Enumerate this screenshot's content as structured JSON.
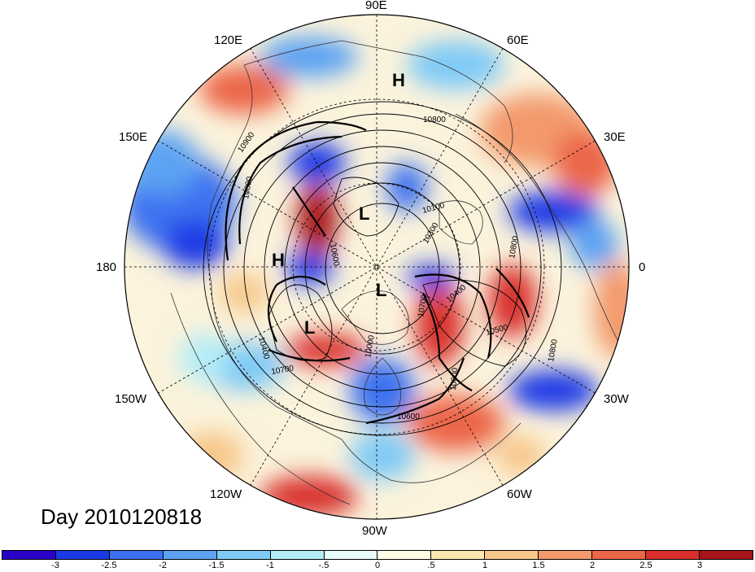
{
  "title": "Day 2010120818",
  "longitude_labels": {
    "e90": "90E",
    "e60": "60E",
    "e30": "30E",
    "e0": "0",
    "w30": "30W",
    "w60": "60W",
    "w90": "90W",
    "w120": "120W",
    "w150": "150W",
    "e180": "180",
    "e150": "150E",
    "e120": "120E"
  },
  "pressure_systems": [
    {
      "label": "H",
      "name": "high-top"
    },
    {
      "label": "L",
      "name": "low-center"
    },
    {
      "label": "H",
      "name": "high-left"
    },
    {
      "label": "L",
      "name": "low-pole"
    },
    {
      "label": "L",
      "name": "low-lower"
    }
  ],
  "contour_labels": [
    "10800",
    "10900",
    "10800",
    "10100",
    "10800",
    "10400",
    "10500",
    "10800",
    "10700",
    "10400",
    "10600",
    "10600",
    "10800",
    "10300",
    "10000",
    "10700"
  ],
  "colorbar": {
    "colors": [
      "#2a00c8",
      "#1a3ae6",
      "#3c72f0",
      "#5ca3f3",
      "#7fcaf6",
      "#b2edf8",
      "#e8fbfb",
      "#fffbe6",
      "#fbe7b0",
      "#f7c78a",
      "#f39a6c",
      "#ec6648",
      "#d9302e",
      "#a8141c"
    ],
    "tick_labels": [
      "-3",
      "-2.5",
      "-2",
      "-1.5",
      "-1",
      "-.5",
      "0",
      ".5",
      "1",
      "1.5",
      "2",
      "2.5",
      "3"
    ]
  }
}
